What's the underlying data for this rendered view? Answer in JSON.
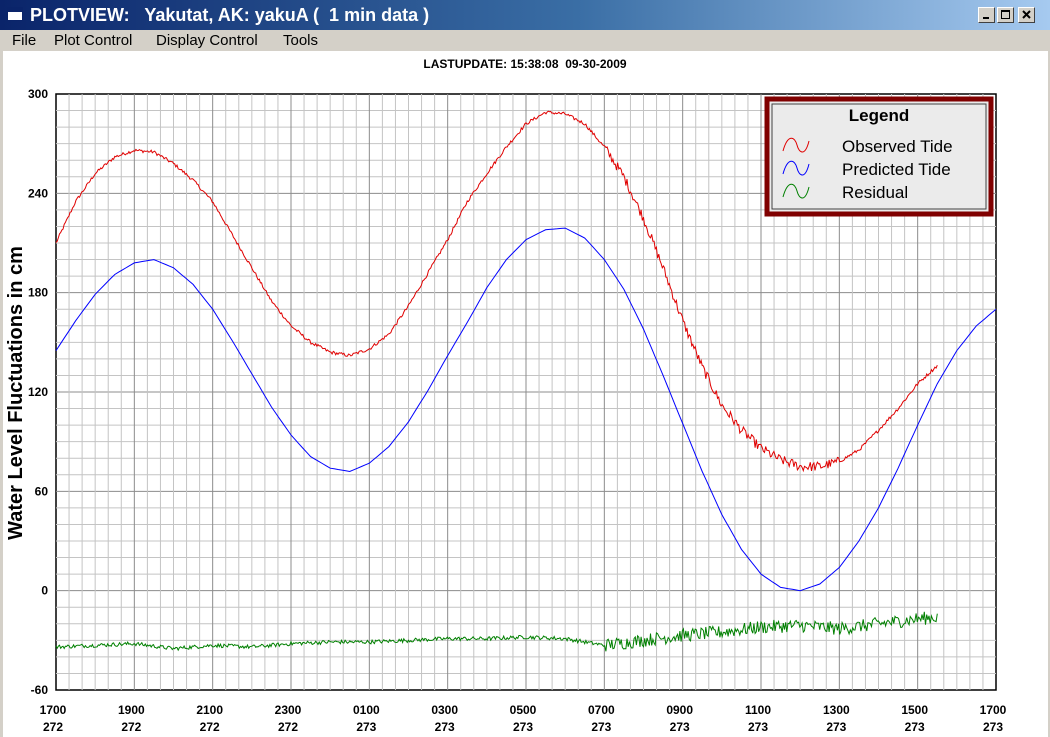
{
  "window": {
    "title": "PLOTVIEW:   Yakutat, AK: yakuA (  1 min data )",
    "controls": [
      "minimize-icon",
      "maximize-icon",
      "close-icon"
    ]
  },
  "menu": {
    "items": [
      "File",
      "Plot Control",
      "Display Control",
      "Tools"
    ]
  },
  "status": {
    "last_update": "LASTUPDATE: 15:38:08  09-30-2009"
  },
  "colors": {
    "observed": "#e00000",
    "predicted": "#0000ff",
    "residual": "#008000",
    "legend_border": "#800000",
    "title_bar": "#0a246a"
  },
  "chart_data": {
    "type": "line",
    "ylabel": "Water Level Fluctuations in cm",
    "ylim": [
      -60,
      300
    ],
    "y_ticks": [
      "300",
      "240",
      "180",
      "120",
      "60",
      "0",
      "-60"
    ],
    "xlim": [
      0,
      24
    ],
    "x_ticks": [
      {
        "time": "1700",
        "day": "272"
      },
      {
        "time": "1900",
        "day": "272"
      },
      {
        "time": "2100",
        "day": "272"
      },
      {
        "time": "2300",
        "day": "272"
      },
      {
        "time": "0100",
        "day": "273"
      },
      {
        "time": "0300",
        "day": "273"
      },
      {
        "time": "0500",
        "day": "273"
      },
      {
        "time": "0700",
        "day": "273"
      },
      {
        "time": "0900",
        "day": "273"
      },
      {
        "time": "1100",
        "day": "273"
      },
      {
        "time": "1300",
        "day": "273"
      },
      {
        "time": "1500",
        "day": "273"
      },
      {
        "time": "1700",
        "day": "273"
      }
    ],
    "grid": true,
    "legend": {
      "title": "Legend",
      "placement": "top-right",
      "entries": [
        "Observed Tide",
        "Predicted Tide",
        "Residual"
      ]
    },
    "series": [
      {
        "name": "Observed Tide",
        "color": "#e00000",
        "x": [
          0,
          0.5,
          1,
          1.5,
          2,
          2.5,
          3,
          3.5,
          4,
          4.5,
          5,
          5.5,
          6,
          6.5,
          7,
          7.5,
          8,
          8.5,
          9,
          9.5,
          10,
          10.5,
          11,
          11.5,
          12,
          12.5,
          13,
          13.5,
          14,
          14.5,
          15,
          15.5,
          16,
          16.5,
          17,
          17.5,
          18,
          18.5,
          19,
          19.5,
          20,
          20.5,
          21,
          21.5,
          22,
          22.5
        ],
        "values": [
          210,
          235,
          252,
          262,
          266,
          265,
          258,
          248,
          235,
          215,
          195,
          175,
          160,
          150,
          144,
          142,
          146,
          155,
          172,
          192,
          212,
          235,
          252,
          268,
          282,
          289,
          288,
          282,
          268,
          250,
          225,
          195,
          163,
          135,
          112,
          97,
          86,
          79,
          75,
          75,
          78,
          85,
          97,
          110,
          125,
          136
        ]
      },
      {
        "name": "Predicted Tide",
        "color": "#0000ff",
        "x": [
          0,
          0.5,
          1,
          1.5,
          2,
          2.5,
          3,
          3.5,
          4,
          4.5,
          5,
          5.5,
          6,
          6.5,
          7,
          7.5,
          8,
          8.5,
          9,
          9.5,
          10,
          10.5,
          11,
          11.5,
          12,
          12.5,
          13,
          13.5,
          14,
          14.5,
          15,
          15.5,
          16,
          16.5,
          17,
          17.5,
          18,
          18.5,
          19,
          19.5,
          20,
          20.5,
          21,
          21.5,
          22,
          22.5,
          23,
          23.5,
          24
        ],
        "values": [
          145,
          163,
          179,
          191,
          198,
          200,
          195,
          185,
          170,
          151,
          131,
          111,
          94,
          81,
          74,
          72,
          77,
          87,
          102,
          121,
          142,
          162,
          183,
          200,
          212,
          218,
          219,
          213,
          200,
          182,
          158,
          130,
          101,
          72,
          46,
          25,
          10,
          2,
          0,
          4,
          14,
          30,
          50,
          74,
          100,
          125,
          145,
          160,
          170
        ]
      },
      {
        "name": "Residual",
        "color": "#008000",
        "x": [
          0,
          1,
          2,
          3,
          4,
          5,
          6,
          7,
          8,
          9,
          10,
          11,
          12,
          13,
          14,
          15,
          16,
          17,
          18,
          19,
          20,
          21,
          22,
          22.5
        ],
        "values": [
          -34,
          -33,
          -32,
          -35,
          -33,
          -34,
          -32,
          -31,
          -31,
          -30,
          -29,
          -29,
          -28,
          -29,
          -33,
          -30,
          -27,
          -25,
          -22,
          -21,
          -23,
          -20,
          -17,
          -16
        ]
      }
    ]
  }
}
